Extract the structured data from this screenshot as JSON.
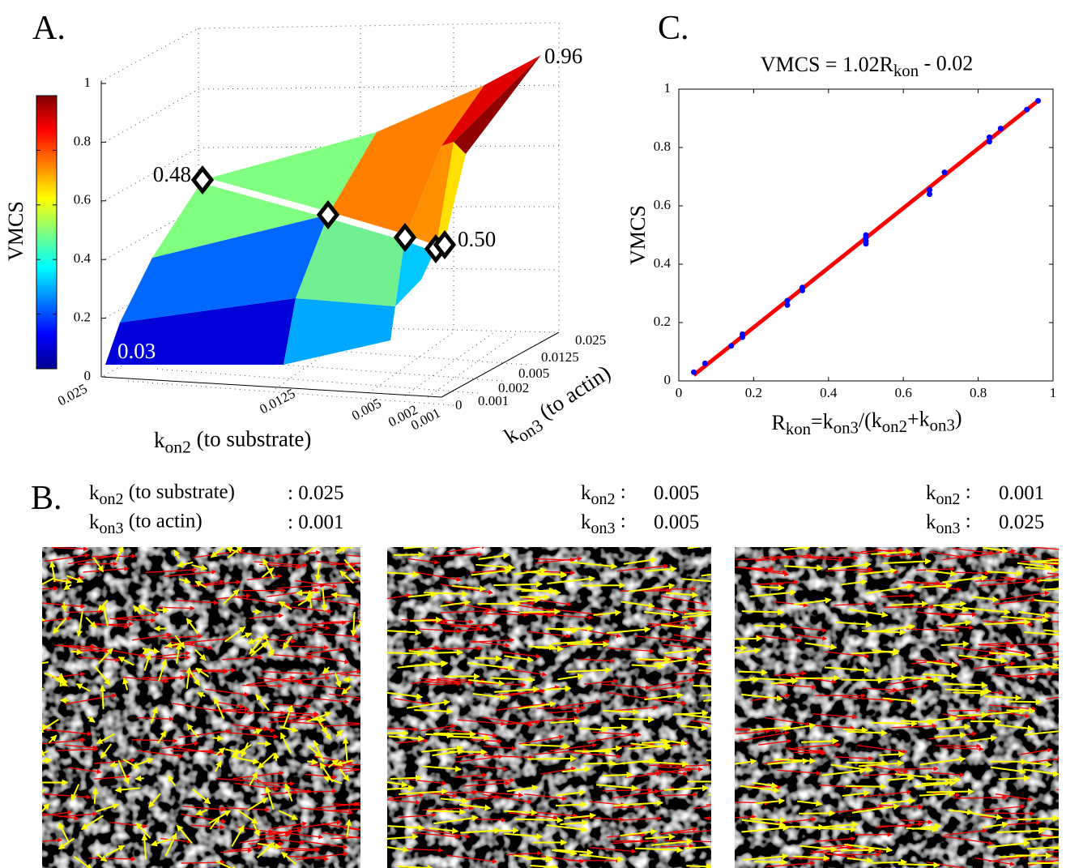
{
  "figure_labels": {
    "a": "A.",
    "b": "B.",
    "c": "C."
  },
  "chart_data": [
    {
      "type": "surface",
      "zlabel": "VMCS",
      "zlim": [
        0,
        1
      ],
      "zticks": [
        0,
        0.2,
        0.4,
        0.6,
        0.8,
        1
      ],
      "colorbar_ticks": [
        0,
        0.2,
        0.4,
        0.6,
        0.8,
        1
      ],
      "xlabel": [
        "k",
        "on2",
        " (to substrate)"
      ],
      "ylabel": [
        "k",
        "on3",
        " (to actin)"
      ],
      "xticks": [
        0.025,
        0.0125,
        0.005,
        0.002,
        0.001
      ],
      "yticks": [
        0,
        0.001,
        0.002,
        0.005,
        0.0125,
        0.025
      ],
      "annotations": [
        "0.96",
        "0.48",
        "0.50",
        "0.03"
      ]
    },
    {
      "type": "scatter",
      "title": [
        "VMCS = 1.02R",
        "kon",
        " - 0.02"
      ],
      "xlabel": [
        "R",
        "kon",
        "=k",
        "on3",
        "/(k",
        "on2",
        "+k",
        "on3",
        ")"
      ],
      "ylabel": "VMCS",
      "xlim": [
        0,
        1
      ],
      "ylim": [
        0,
        1
      ],
      "xticks": [
        0,
        0.2,
        0.4,
        0.6,
        0.8,
        1
      ],
      "yticks": [
        0,
        0.2,
        0.4,
        0.6,
        0.8,
        1
      ],
      "points": {
        "color": "#0000ff",
        "x": [
          0.04,
          0.07,
          0.14,
          0.17,
          0.17,
          0.29,
          0.29,
          0.33,
          0.33,
          0.5,
          0.5,
          0.5,
          0.5,
          0.67,
          0.67,
          0.71,
          0.83,
          0.83,
          0.86,
          0.93,
          0.96
        ],
        "values": [
          0.03,
          0.06,
          0.12,
          0.15,
          0.16,
          0.26,
          0.275,
          0.31,
          0.32,
          0.47,
          0.48,
          0.49,
          0.5,
          0.64,
          0.655,
          0.715,
          0.82,
          0.835,
          0.865,
          0.93,
          0.96
        ]
      },
      "fit": {
        "color": "#ff0000",
        "x": [
          0.04,
          0.96
        ],
        "values": [
          0.02,
          0.96
        ]
      }
    }
  ],
  "panels": [
    {
      "lines": [
        {
          "label": [
            "k",
            "on2",
            " (to substrate)"
          ],
          "value": ": 0.025"
        },
        {
          "label": [
            "k",
            "on3",
            " (to actin)"
          ],
          "value": ": 0.001"
        }
      ]
    },
    {
      "lines": [
        {
          "label": [
            "k",
            "on2",
            " :"
          ],
          "value": "0.005"
        },
        {
          "label": [
            "k",
            "on3",
            " :"
          ],
          "value": "0.005"
        }
      ]
    },
    {
      "lines": [
        {
          "label": [
            "k",
            "on2",
            " :"
          ],
          "value": "0.001"
        },
        {
          "label": [
            "k",
            "on3",
            " :"
          ],
          "value": "0.025"
        }
      ]
    }
  ]
}
